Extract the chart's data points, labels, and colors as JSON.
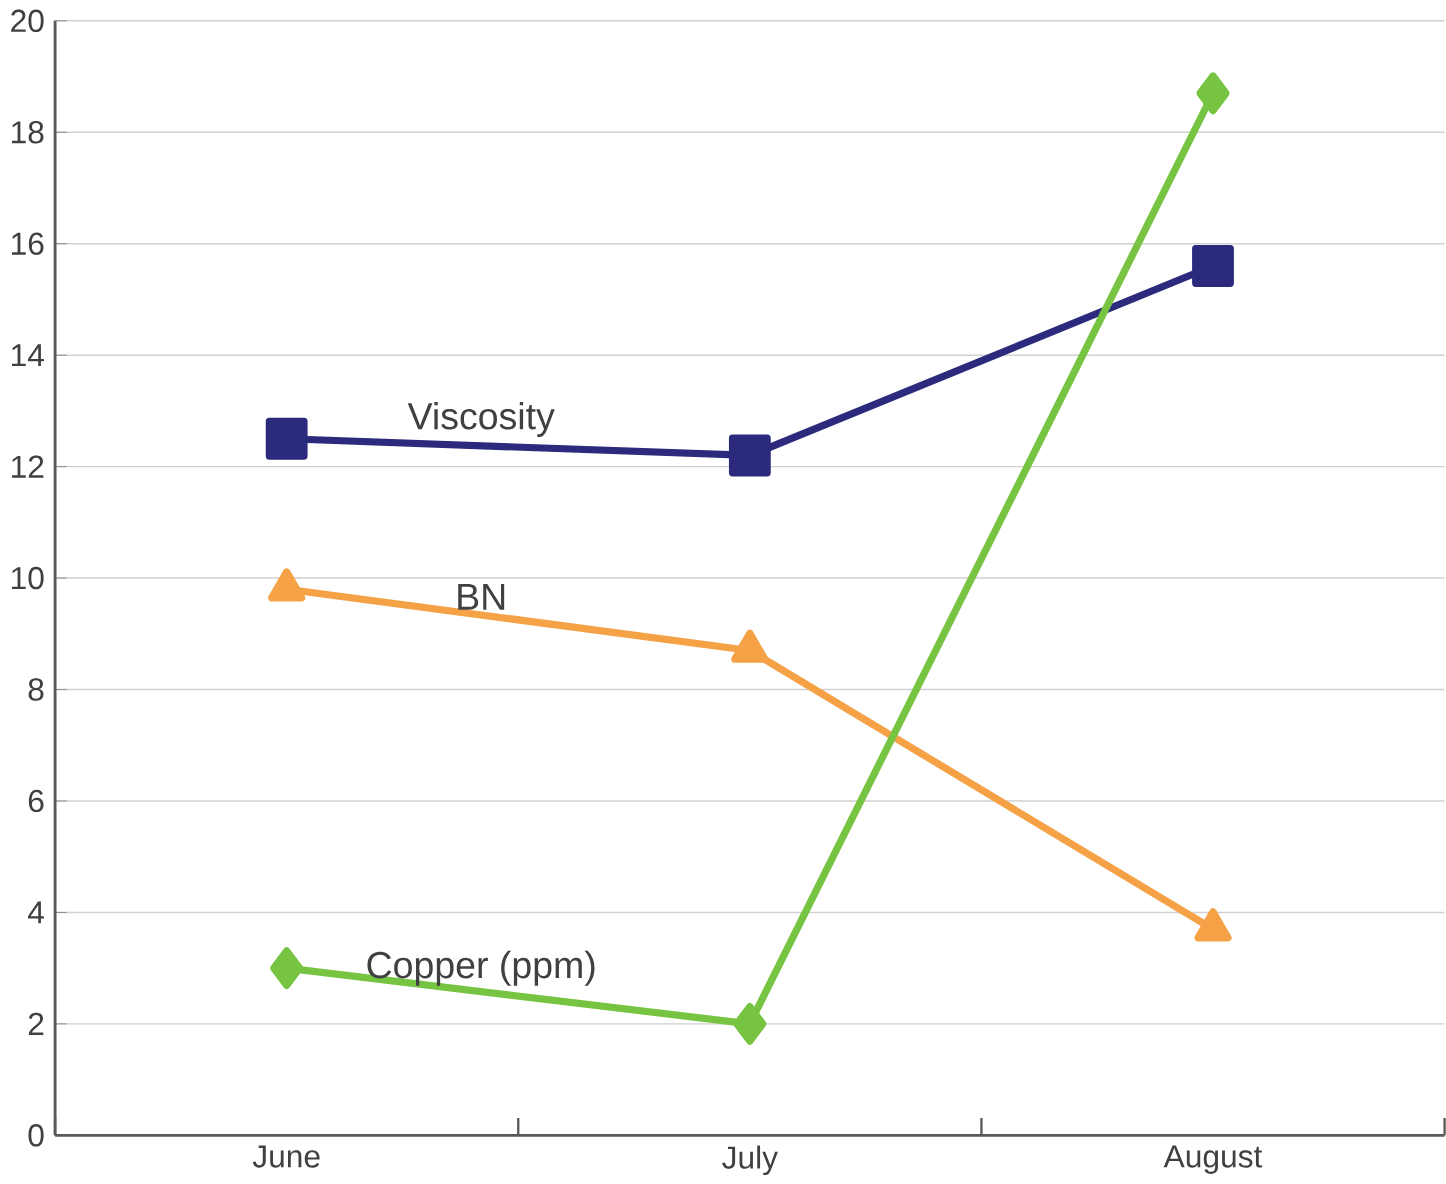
{
  "chart_data": {
    "type": "line",
    "categories": [
      "June",
      "July",
      "August"
    ],
    "series": [
      {
        "name": "Viscosity",
        "color": "#2b2a7c",
        "values": [
          12.5,
          12.2,
          15.6
        ],
        "marker": "square"
      },
      {
        "name": "BN",
        "color": "#f5a146",
        "values": [
          9.8,
          8.7,
          3.7
        ],
        "marker": "triangle"
      },
      {
        "name": "Copper (ppm)",
        "color": "#77c442",
        "values": [
          3.0,
          2.0,
          18.7
        ],
        "marker": "diamond"
      }
    ],
    "ylim": [
      0,
      20
    ],
    "yticks": [
      0,
      2,
      4,
      6,
      8,
      10,
      12,
      14,
      16,
      18,
      20
    ],
    "grid": "y",
    "legend": false,
    "line_style": "solid"
  }
}
